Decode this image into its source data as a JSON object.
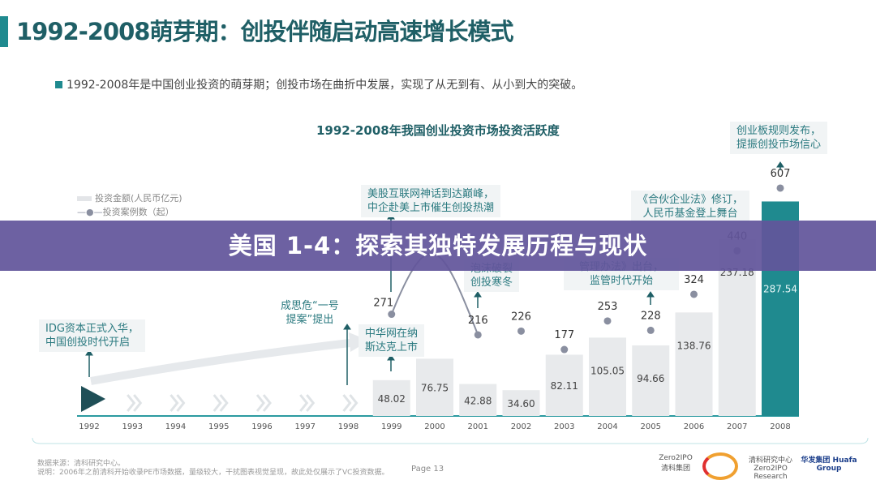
{
  "header": {
    "title": "1992-2008萌芽期：创投伴随启动高速增长模式",
    "bullet": "1992-2008年是中国创业投资的萌芽期；创投市场在曲折中发展，实现了从无到有、从小到大的突破。"
  },
  "chart_data": {
    "type": "bar+line",
    "title": "1992-2008年我国创业投资市场投资活跃度",
    "categories": [
      "1992",
      "1993",
      "1994",
      "1995",
      "1996",
      "1997",
      "1998",
      "1999",
      "2000",
      "2001",
      "2002",
      "2003",
      "2004",
      "2005",
      "2006",
      "2007",
      "2008"
    ],
    "series": [
      {
        "name": "投资金额(人民币亿元)",
        "type": "bar",
        "x": [
          "1999",
          "2000",
          "2001",
          "2002",
          "2003",
          "2004",
          "2005",
          "2006",
          "2007",
          "2008"
        ],
        "values": [
          48.02,
          76.75,
          42.88,
          34.6,
          82.11,
          105.05,
          94.66,
          138.76,
          237.18,
          287.54
        ],
        "labels": [
          "48.02",
          "76.75",
          "42.88",
          "34.60",
          "82.11",
          "105.05",
          "94.66",
          "138.76",
          "237.18",
          "287.54"
        ]
      },
      {
        "name": "投资案例数（起）",
        "type": "line",
        "x": [
          "1999",
          "2000",
          "2001",
          "2002",
          "2003",
          "2004",
          "2005",
          "2006",
          "2007",
          "2008"
        ],
        "values": [
          271,
          null,
          216,
          226,
          177,
          253,
          228,
          324,
          440,
          607
        ],
        "labels": [
          "271",
          "",
          "216",
          "226",
          "177",
          "253",
          "228",
          "324",
          "440",
          "607"
        ]
      }
    ],
    "legend": "top-left",
    "colors": {
      "bar": "#e8eaec",
      "bar_highlight": "#1f8a8f",
      "line": "#8a8fa0"
    }
  },
  "annotations": {
    "idg": [
      "IDG资本正式入华，",
      "中国创投时代开启"
    ],
    "yihao": [
      "成思危“一号",
      "提案”提出"
    ],
    "nasdaq": [
      "中华网在纳",
      "斯达克上市"
    ],
    "peak": [
      "美股互联网神话到达巅峰，",
      "中企赴美上市催生创投热潮"
    ],
    "bubble": [
      "泡沫破裂",
      "创投寒冬"
    ],
    "regulation": [
      "管理办法》出台，",
      "监管时代开始"
    ],
    "partnership": [
      "《合伙企业法》修订，",
      "人民币基金登上舞台"
    ],
    "gem": [
      "创业板规则发布，",
      "提振创投市场信心"
    ]
  },
  "banner": "美国 1-4：探索其独特发展历程与现状",
  "footer": {
    "source": "数据来源：清科研究中心。",
    "note": "说明：2006年之前清科开始收录PE市场数据，量级较大，干扰图表视觉呈现，故此处仅展示了VC投资数据。",
    "page": "Page  13",
    "logos": [
      "Zero2IPO 清科集团",
      "清科研究中心 Zero2IPO Research",
      "华发集团 Huafa Group"
    ]
  }
}
